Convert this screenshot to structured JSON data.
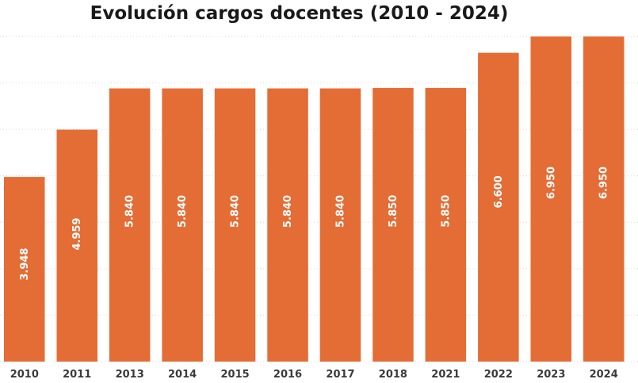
{
  "chart_data": {
    "type": "bar",
    "title": "Evolución cargos docentes (2010 - 2024)",
    "categories": [
      "2010",
      "2011",
      "2013",
      "2014",
      "2015",
      "2016",
      "2017",
      "2018",
      "2021",
      "2022",
      "2023",
      "2024"
    ],
    "values": [
      3948,
      4959,
      5840,
      5840,
      5840,
      5840,
      5840,
      5850,
      5850,
      6600,
      6950,
      6950
    ],
    "value_labels": [
      "3.948",
      "4.959",
      "5.840",
      "5.840",
      "5.840",
      "5.840",
      "5.840",
      "5.850",
      "5.850",
      "6.600",
      "6.950",
      "6.950"
    ],
    "ylim": [
      0,
      6950
    ],
    "grid": true,
    "bar_color": "#E46C35",
    "label_color": "#ffffff"
  }
}
